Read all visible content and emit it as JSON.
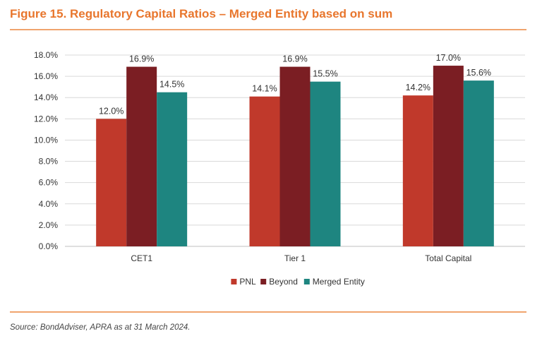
{
  "header": {
    "title": "Figure 15. Regulatory Capital Ratios – Merged Entity based on sum"
  },
  "footer": {
    "source": "Source: BondAdviser, APRA as at 31 March 2024."
  },
  "chart_data": {
    "type": "bar",
    "title": "",
    "xlabel": "",
    "ylabel": "",
    "categories": [
      "CET1",
      "Tier 1",
      "Total Capital"
    ],
    "series": [
      {
        "name": "PNL",
        "values": [
          12.0,
          14.1,
          14.2
        ],
        "labels": [
          "12.0%",
          "14.1%",
          "14.2%"
        ],
        "color": "#c0392b"
      },
      {
        "name": "Beyond",
        "values": [
          16.9,
          16.9,
          17.0
        ],
        "labels": [
          "16.9%",
          "16.9%",
          "17.0%"
        ],
        "color": "#7b1e23"
      },
      {
        "name": "Merged Entity",
        "values": [
          14.5,
          15.5,
          15.6
        ],
        "labels": [
          "14.5%",
          "15.5%",
          "15.6%"
        ],
        "color": "#1e8580"
      }
    ],
    "ylim": [
      0,
      18
    ],
    "yticks": [
      0,
      2,
      4,
      6,
      8,
      10,
      12,
      14,
      16,
      18
    ],
    "ytick_labels": [
      "0.0%",
      "2.0%",
      "4.0%",
      "6.0%",
      "8.0%",
      "10.0%",
      "12.0%",
      "14.0%",
      "16.0%",
      "18.0%"
    ],
    "grid": true,
    "gridline_color": "#d9d9d9",
    "legend_position": "bottom-center"
  }
}
